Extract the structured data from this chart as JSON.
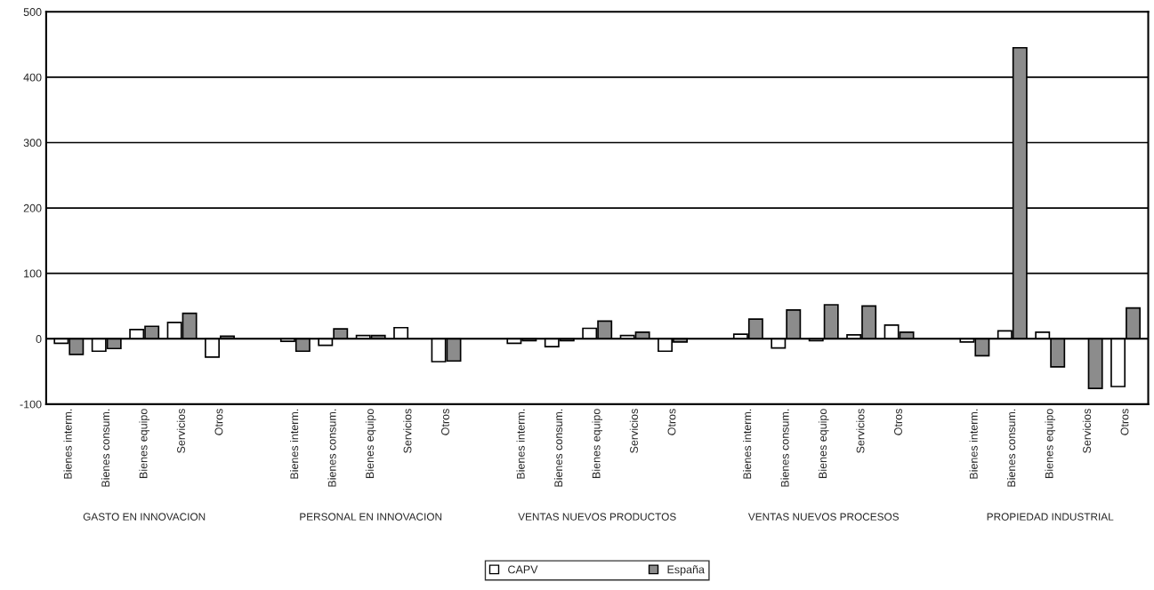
{
  "chart_data": {
    "type": "bar",
    "categories": [
      "Bienes interm.",
      "Bienes consum.",
      "Bienes equipo",
      "Servicios",
      "Otros",
      null,
      "Bienes interm.",
      "Bienes consum.",
      "Bienes equipo",
      "Servicios",
      "Otros",
      null,
      "Bienes interm.",
      "Bienes consum.",
      "Bienes equipo",
      "Servicios",
      "Otros",
      null,
      "Bienes interm.",
      "Bienes consum.",
      "Bienes equipo",
      "Servicios",
      "Otros",
      null,
      "Bienes interm.",
      "Bienes consum.",
      "Bienes equipo",
      "Servicios",
      "Otros"
    ],
    "series": [
      {
        "name": "CAPV",
        "color": "#ffffff",
        "values": [
          -7,
          -19,
          14,
          25,
          -28,
          null,
          -4,
          -10,
          5,
          17,
          -35,
          null,
          -7,
          -12,
          16,
          5,
          -19,
          null,
          7,
          -14,
          -3,
          6,
          21,
          null,
          -5,
          12,
          10,
          null,
          -73
        ]
      },
      {
        "name": "España",
        "color": "#8c8c8c",
        "values": [
          -24,
          -15,
          19,
          39,
          4,
          null,
          -19,
          15,
          5,
          null,
          -34,
          null,
          -3,
          -3,
          27,
          10,
          -5,
          null,
          30,
          44,
          52,
          50,
          10,
          null,
          -26,
          445,
          -43,
          -76,
          47
        ]
      }
    ],
    "annotations": [
      "GASTO EN INNOVACION",
      "PERSONAL EN INNOVACION",
      "VENTAS NUEVOS PRODUCTOS",
      "VENTAS NUEVOS PROCESOS",
      "PROPIEDAD INDUSTRIAL"
    ],
    "ylim": [
      -100,
      500
    ],
    "yticks": [
      -100,
      0,
      100,
      200,
      300,
      400,
      500
    ],
    "grid": "y",
    "legend": "bottom"
  }
}
